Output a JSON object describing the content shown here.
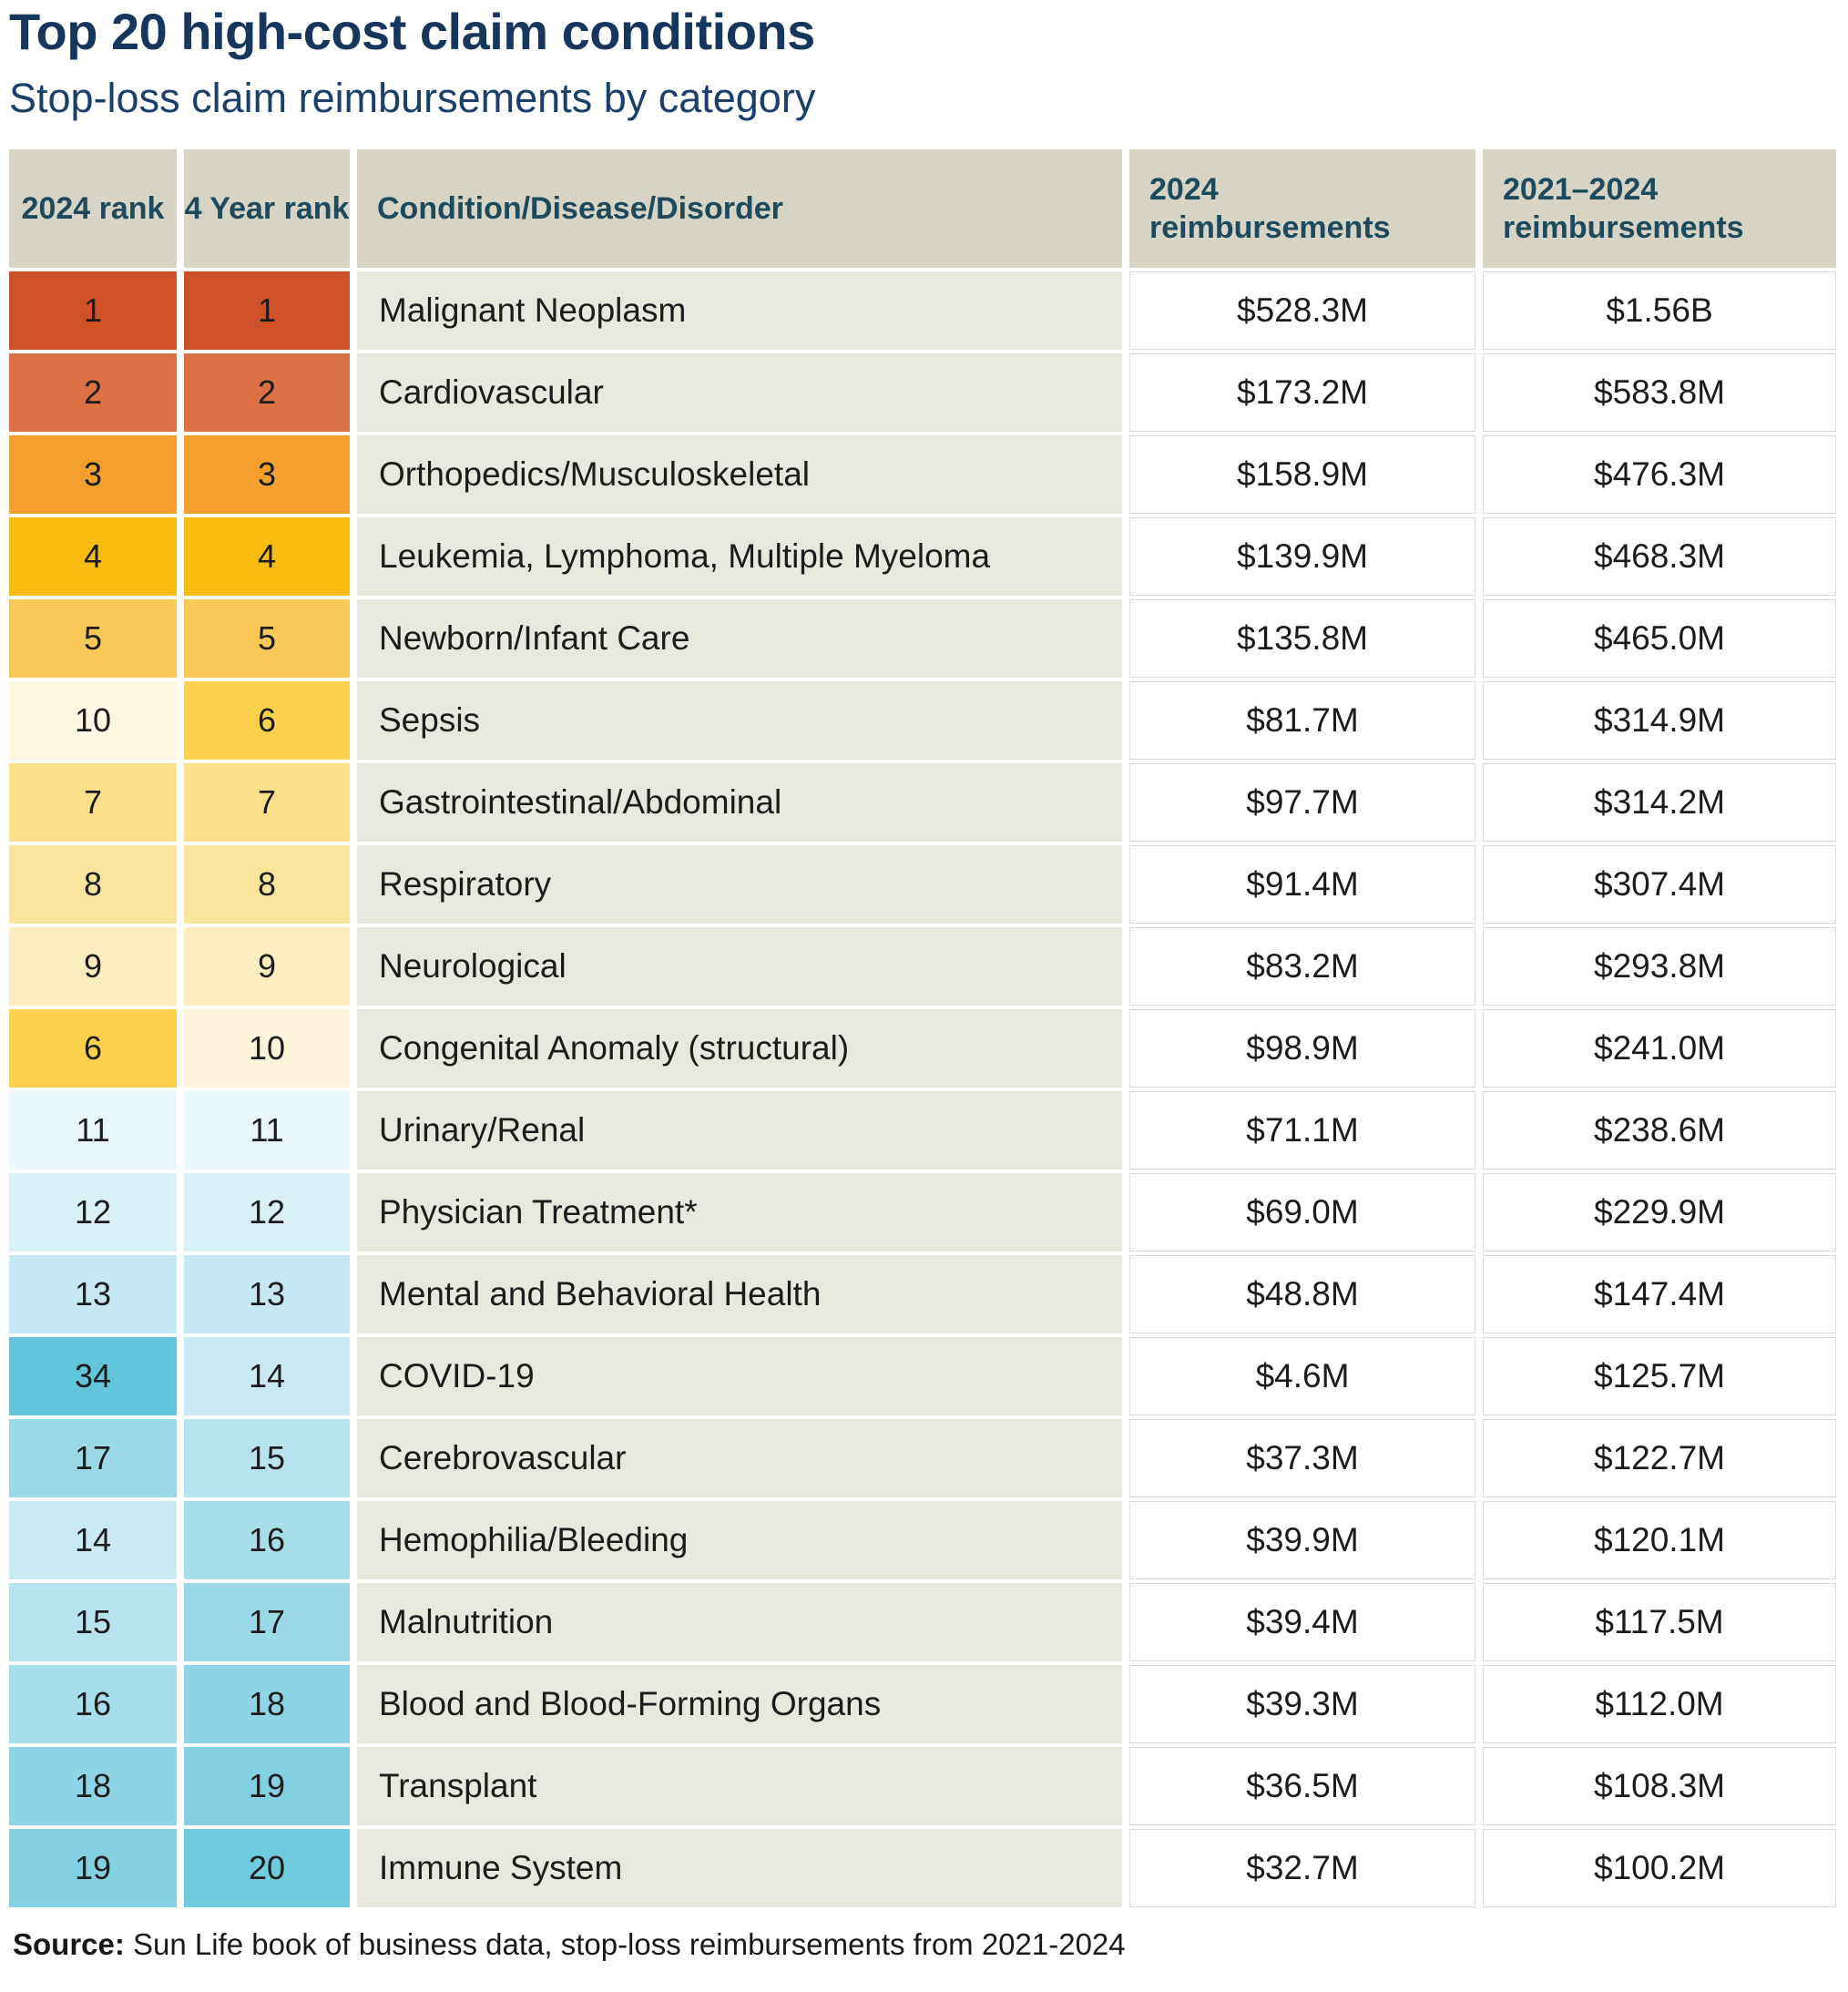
{
  "chart_data": {
    "type": "table",
    "title": "Top 20 high-cost claim conditions",
    "subtitle": "Stop-loss claim reimbursements by category",
    "columns": [
      "2024 rank",
      "4 Year rank",
      "Condition/Disease/Disorder",
      "2024 reimbursements",
      "2021–2024 reimbursements"
    ],
    "legend_note": "rank cells use a heatmap scale: rank 1 dark orange through yellow (~10) into deepening blue (20+)",
    "rows": [
      {
        "rank2024": "1",
        "rank4yr": "1",
        "condition": "Malignant Neoplasm",
        "reimb2024": "$528.3M",
        "reimb2021_2024": "$1.56B",
        "color2024": "#ce5127",
        "color4yr": "#ce5127"
      },
      {
        "rank2024": "2",
        "rank4yr": "2",
        "condition": "Cardiovascular",
        "reimb2024": "$173.2M",
        "reimb2021_2024": "$583.8M",
        "color2024": "#dc7144",
        "color4yr": "#dc7144"
      },
      {
        "rank2024": "3",
        "rank4yr": "3",
        "condition": "Orthopedics/Musculoskeletal",
        "reimb2024": "$158.9M",
        "reimb2021_2024": "$476.3M",
        "color2024": "#f4a02f",
        "color4yr": "#f4a02f"
      },
      {
        "rank2024": "4",
        "rank4yr": "4",
        "condition": "Leukemia, Lymphoma, Multiple Myeloma",
        "reimb2024": "$139.9M",
        "reimb2021_2024": "$468.3M",
        "color2024": "#f8bb10",
        "color4yr": "#f8bb10"
      },
      {
        "rank2024": "5",
        "rank4yr": "5",
        "condition": "Newborn/Infant Care",
        "reimb2024": "$135.8M",
        "reimb2021_2024": "$465.0M",
        "color2024": "#fac857",
        "color4yr": "#fac857"
      },
      {
        "rank2024": "10",
        "rank4yr": "6",
        "condition": "Sepsis",
        "reimb2024": "$81.7M",
        "reimb2021_2024": "$314.9M",
        "color2024": "#fdf6e3",
        "color4yr": "#fbd14e"
      },
      {
        "rank2024": "7",
        "rank4yr": "7",
        "condition": "Gastrointestinal/Abdominal",
        "reimb2024": "$97.7M",
        "reimb2021_2024": "$314.2M",
        "color2024": "#fbe089",
        "color4yr": "#fbe089"
      },
      {
        "rank2024": "8",
        "rank4yr": "8",
        "condition": "Respiratory",
        "reimb2024": "$91.4M",
        "reimb2021_2024": "$307.4M",
        "color2024": "#fbe59d",
        "color4yr": "#fbe59d"
      },
      {
        "rank2024": "9",
        "rank4yr": "9",
        "condition": "Neurological",
        "reimb2024": "$83.2M",
        "reimb2021_2024": "$293.8M",
        "color2024": "#fcedc1",
        "color4yr": "#fcedc1"
      },
      {
        "rank2024": "6",
        "rank4yr": "10",
        "condition": "Congenital Anomaly (structural)",
        "reimb2024": "$98.9M",
        "reimb2021_2024": "$241.0M",
        "color2024": "#fbd14e",
        "color4yr": "#fdf3d8"
      },
      {
        "rank2024": "11",
        "rank4yr": "11",
        "condition": "Urinary/Renal",
        "reimb2024": "$71.1M",
        "reimb2021_2024": "$238.6M",
        "color2024": "#e9f6fa",
        "color4yr": "#e9f6fa"
      },
      {
        "rank2024": "12",
        "rank4yr": "12",
        "condition": "Physician Treatment*",
        "reimb2024": "$69.0M",
        "reimb2021_2024": "$229.9M",
        "color2024": "#daf0f7",
        "color4yr": "#daf0f7"
      },
      {
        "rank2024": "13",
        "rank4yr": "13",
        "condition": "Mental and Behavioral Health",
        "reimb2024": "$48.8M",
        "reimb2021_2024": "$147.4M",
        "color2024": "#c6e8f2",
        "color4yr": "#c6e8f2"
      },
      {
        "rank2024": "34",
        "rank4yr": "14",
        "condition": "COVID-19",
        "reimb2024": "$4.6M",
        "reimb2021_2024": "$125.7M",
        "color2024": "#63c5dc",
        "color4yr": "#c9eaf3"
      },
      {
        "rank2024": "17",
        "rank4yr": "15",
        "condition": "Cerebrovascular",
        "reimb2024": "$37.3M",
        "reimb2021_2024": "$122.7M",
        "color2024": "#9bd9e9",
        "color4yr": "#b7e3ee"
      },
      {
        "rank2024": "14",
        "rank4yr": "16",
        "condition": "Hemophilia/Bleeding",
        "reimb2024": "$39.9M",
        "reimb2021_2024": "$120.1M",
        "color2024": "#c9eaf3",
        "color4yr": "#a8ddeb"
      },
      {
        "rank2024": "15",
        "rank4yr": "17",
        "condition": "Malnutrition",
        "reimb2024": "$39.4M",
        "reimb2021_2024": "$117.5M",
        "color2024": "#b7e3ee",
        "color4yr": "#9bd9e9"
      },
      {
        "rank2024": "16",
        "rank4yr": "18",
        "condition": "Blood and Blood-Forming Organs",
        "reimb2024": "$39.3M",
        "reimb2021_2024": "$112.0M",
        "color2024": "#a8ddeb",
        "color4yr": "#8ed4e6"
      },
      {
        "rank2024": "18",
        "rank4yr": "19",
        "condition": "Transplant",
        "reimb2024": "$36.5M",
        "reimb2021_2024": "$108.3M",
        "color2024": "#8ed4e6",
        "color4yr": "#84d0e3"
      },
      {
        "rank2024": "19",
        "rank4yr": "20",
        "condition": "Immune System",
        "reimb2024": "$32.7M",
        "reimb2021_2024": "$100.2M",
        "color2024": "#84d0e3",
        "color4yr": "#70cade"
      }
    ]
  },
  "source": {
    "label": "Source:",
    "text": " Sun Life book of business data, stop-loss reimbursements from 2021-2024"
  }
}
